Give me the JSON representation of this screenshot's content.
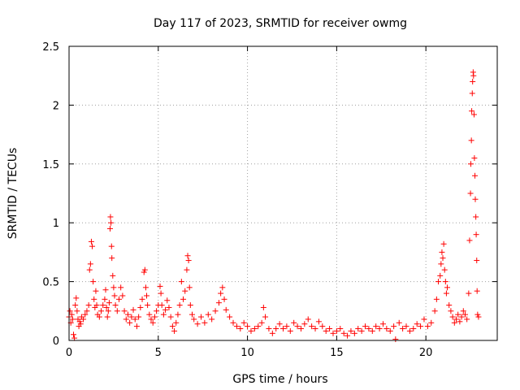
{
  "chart_data": {
    "type": "scatter",
    "title": "Day 117 of 2023, SRMTID for receiver owmg",
    "xlabel": "GPS time / hours",
    "ylabel": "SRMTID / TECUs",
    "xlim": [
      0,
      24
    ],
    "ylim": [
      0,
      2.5
    ],
    "grid": true,
    "x_ticks": [
      0,
      5,
      10,
      15,
      20
    ],
    "x_tick_labels": [
      "0",
      "5",
      "10",
      "15",
      "20"
    ],
    "y_ticks": [
      0,
      0.5,
      1,
      1.5,
      2,
      2.5
    ],
    "y_tick_labels": [
      "0",
      "0.5",
      "1",
      "1.5",
      "2",
      "2.5"
    ],
    "marker": "plus",
    "series": [
      {
        "name": "SRMTID",
        "color": "#ff0000",
        "points": [
          [
            0.0,
            0.2
          ],
          [
            0.05,
            0.25
          ],
          [
            0.1,
            0.15
          ],
          [
            0.15,
            0.22
          ],
          [
            0.2,
            0.18
          ],
          [
            0.25,
            0.05
          ],
          [
            0.3,
            0.02
          ],
          [
            0.35,
            0.3
          ],
          [
            0.4,
            0.36
          ],
          [
            0.45,
            0.25
          ],
          [
            0.5,
            0.18
          ],
          [
            0.55,
            0.12
          ],
          [
            0.6,
            0.16
          ],
          [
            0.65,
            0.14
          ],
          [
            0.7,
            0.2
          ],
          [
            0.8,
            0.18
          ],
          [
            0.9,
            0.22
          ],
          [
            1.0,
            0.25
          ],
          [
            1.1,
            0.3
          ],
          [
            1.15,
            0.6
          ],
          [
            1.2,
            0.65
          ],
          [
            1.25,
            0.84
          ],
          [
            1.3,
            0.8
          ],
          [
            1.35,
            0.5
          ],
          [
            1.4,
            0.35
          ],
          [
            1.45,
            0.28
          ],
          [
            1.5,
            0.42
          ],
          [
            1.55,
            0.3
          ],
          [
            1.6,
            0.22
          ],
          [
            1.7,
            0.2
          ],
          [
            1.8,
            0.25
          ],
          [
            1.9,
            0.3
          ],
          [
            2.0,
            0.35
          ],
          [
            2.05,
            0.43
          ],
          [
            2.1,
            0.28
          ],
          [
            2.15,
            0.2
          ],
          [
            2.2,
            0.25
          ],
          [
            2.25,
            0.32
          ],
          [
            2.3,
            0.95
          ],
          [
            2.32,
            1.05
          ],
          [
            2.35,
            1.0
          ],
          [
            2.38,
            0.8
          ],
          [
            2.4,
            0.7
          ],
          [
            2.45,
            0.55
          ],
          [
            2.5,
            0.45
          ],
          [
            2.55,
            0.38
          ],
          [
            2.6,
            0.3
          ],
          [
            2.7,
            0.25
          ],
          [
            2.8,
            0.35
          ],
          [
            2.9,
            0.45
          ],
          [
            3.0,
            0.38
          ],
          [
            3.1,
            0.25
          ],
          [
            3.2,
            0.18
          ],
          [
            3.3,
            0.22
          ],
          [
            3.4,
            0.15
          ],
          [
            3.5,
            0.2
          ],
          [
            3.6,
            0.26
          ],
          [
            3.7,
            0.18
          ],
          [
            3.8,
            0.12
          ],
          [
            3.9,
            0.2
          ],
          [
            4.0,
            0.28
          ],
          [
            4.1,
            0.35
          ],
          [
            4.2,
            0.58
          ],
          [
            4.25,
            0.6
          ],
          [
            4.3,
            0.45
          ],
          [
            4.35,
            0.38
          ],
          [
            4.4,
            0.3
          ],
          [
            4.5,
            0.22
          ],
          [
            4.6,
            0.18
          ],
          [
            4.7,
            0.15
          ],
          [
            4.8,
            0.2
          ],
          [
            4.9,
            0.25
          ],
          [
            5.0,
            0.3
          ],
          [
            5.1,
            0.46
          ],
          [
            5.15,
            0.4
          ],
          [
            5.2,
            0.3
          ],
          [
            5.3,
            0.22
          ],
          [
            5.4,
            0.26
          ],
          [
            5.5,
            0.34
          ],
          [
            5.6,
            0.28
          ],
          [
            5.7,
            0.2
          ],
          [
            5.8,
            0.12
          ],
          [
            5.9,
            0.08
          ],
          [
            6.0,
            0.15
          ],
          [
            6.1,
            0.22
          ],
          [
            6.2,
            0.3
          ],
          [
            6.3,
            0.5
          ],
          [
            6.4,
            0.35
          ],
          [
            6.5,
            0.42
          ],
          [
            6.6,
            0.6
          ],
          [
            6.65,
            0.72
          ],
          [
            6.7,
            0.68
          ],
          [
            6.75,
            0.45
          ],
          [
            6.8,
            0.3
          ],
          [
            6.9,
            0.22
          ],
          [
            7.0,
            0.18
          ],
          [
            7.2,
            0.14
          ],
          [
            7.4,
            0.2
          ],
          [
            7.6,
            0.15
          ],
          [
            7.8,
            0.22
          ],
          [
            8.0,
            0.18
          ],
          [
            8.2,
            0.25
          ],
          [
            8.4,
            0.32
          ],
          [
            8.5,
            0.4
          ],
          [
            8.6,
            0.45
          ],
          [
            8.7,
            0.35
          ],
          [
            8.8,
            0.26
          ],
          [
            9.0,
            0.2
          ],
          [
            9.2,
            0.15
          ],
          [
            9.4,
            0.12
          ],
          [
            9.6,
            0.1
          ],
          [
            9.8,
            0.15
          ],
          [
            10.0,
            0.12
          ],
          [
            10.2,
            0.08
          ],
          [
            10.4,
            0.1
          ],
          [
            10.6,
            0.12
          ],
          [
            10.8,
            0.15
          ],
          [
            10.9,
            0.28
          ],
          [
            11.0,
            0.2
          ],
          [
            11.2,
            0.1
          ],
          [
            11.4,
            0.06
          ],
          [
            11.6,
            0.1
          ],
          [
            11.8,
            0.14
          ],
          [
            12.0,
            0.1
          ],
          [
            12.2,
            0.12
          ],
          [
            12.4,
            0.08
          ],
          [
            12.6,
            0.15
          ],
          [
            12.8,
            0.12
          ],
          [
            13.0,
            0.1
          ],
          [
            13.2,
            0.14
          ],
          [
            13.4,
            0.18
          ],
          [
            13.6,
            0.12
          ],
          [
            13.8,
            0.1
          ],
          [
            14.0,
            0.16
          ],
          [
            14.2,
            0.12
          ],
          [
            14.4,
            0.08
          ],
          [
            14.6,
            0.1
          ],
          [
            14.8,
            0.06
          ],
          [
            15.0,
            0.08
          ],
          [
            15.2,
            0.1
          ],
          [
            15.4,
            0.06
          ],
          [
            15.6,
            0.04
          ],
          [
            15.8,
            0.08
          ],
          [
            16.0,
            0.06
          ],
          [
            16.2,
            0.1
          ],
          [
            16.4,
            0.08
          ],
          [
            16.6,
            0.12
          ],
          [
            16.8,
            0.1
          ],
          [
            17.0,
            0.08
          ],
          [
            17.2,
            0.12
          ],
          [
            17.4,
            0.1
          ],
          [
            17.6,
            0.14
          ],
          [
            17.8,
            0.1
          ],
          [
            18.0,
            0.08
          ],
          [
            18.2,
            0.12
          ],
          [
            18.3,
            0.01
          ],
          [
            18.5,
            0.15
          ],
          [
            18.7,
            0.1
          ],
          [
            18.9,
            0.12
          ],
          [
            19.1,
            0.08
          ],
          [
            19.3,
            0.1
          ],
          [
            19.5,
            0.14
          ],
          [
            19.7,
            0.12
          ],
          [
            19.9,
            0.18
          ],
          [
            20.1,
            0.12
          ],
          [
            20.3,
            0.15
          ],
          [
            20.5,
            0.25
          ],
          [
            20.6,
            0.35
          ],
          [
            20.7,
            0.5
          ],
          [
            20.8,
            0.55
          ],
          [
            20.85,
            0.65
          ],
          [
            20.9,
            0.75
          ],
          [
            20.95,
            0.7
          ],
          [
            21.0,
            0.82
          ],
          [
            21.05,
            0.6
          ],
          [
            21.1,
            0.5
          ],
          [
            21.15,
            0.4
          ],
          [
            21.2,
            0.45
          ],
          [
            21.3,
            0.3
          ],
          [
            21.4,
            0.25
          ],
          [
            21.5,
            0.2
          ],
          [
            21.6,
            0.15
          ],
          [
            21.7,
            0.18
          ],
          [
            21.8,
            0.22
          ],
          [
            21.9,
            0.16
          ],
          [
            22.0,
            0.2
          ],
          [
            22.1,
            0.25
          ],
          [
            22.2,
            0.22
          ],
          [
            22.3,
            0.18
          ],
          [
            22.4,
            0.4
          ],
          [
            22.45,
            0.85
          ],
          [
            22.5,
            1.25
          ],
          [
            22.52,
            1.5
          ],
          [
            22.55,
            1.7
          ],
          [
            22.57,
            1.95
          ],
          [
            22.6,
            2.1
          ],
          [
            22.62,
            2.2
          ],
          [
            22.65,
            2.28
          ],
          [
            22.67,
            2.25
          ],
          [
            22.7,
            1.92
          ],
          [
            22.72,
            1.55
          ],
          [
            22.75,
            1.4
          ],
          [
            22.77,
            1.2
          ],
          [
            22.8,
            1.05
          ],
          [
            22.82,
            0.9
          ],
          [
            22.85,
            0.68
          ],
          [
            22.87,
            0.42
          ],
          [
            22.9,
            0.22
          ],
          [
            22.95,
            0.2
          ]
        ]
      }
    ]
  }
}
